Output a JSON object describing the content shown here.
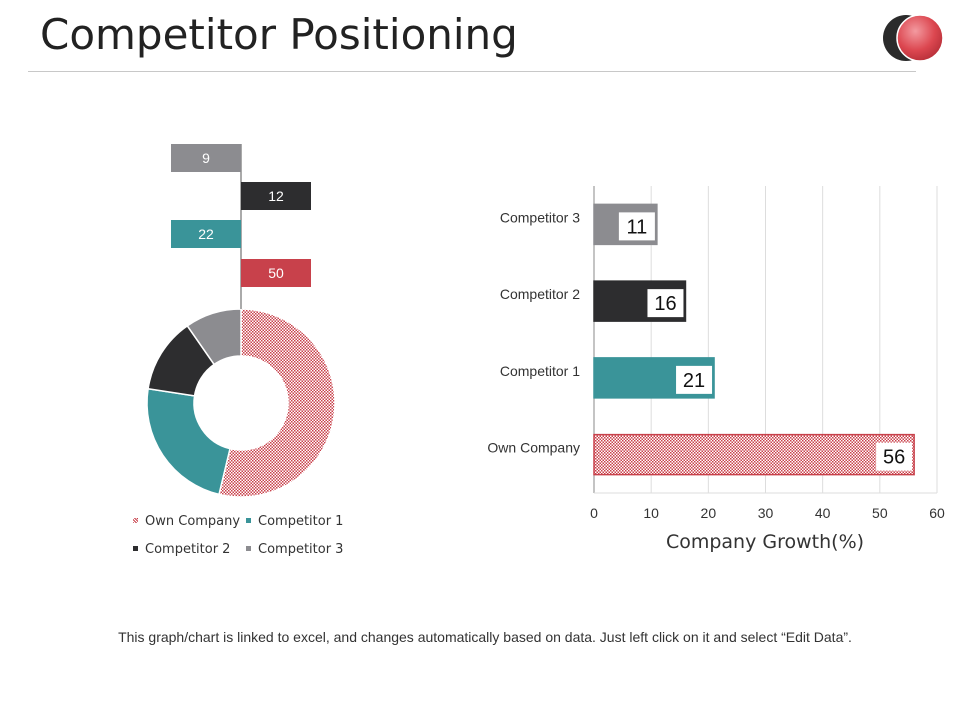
{
  "page": {
    "title": "Competitor Positioning",
    "footer": "This graph/chart is linked to excel, and changes automatically  based on data. Just left click on it and select “Edit Data”."
  },
  "colors": {
    "own": "#c8414b",
    "comp1": "#3a9499",
    "comp2": "#2d2d2f",
    "comp3": "#8c8c90",
    "grid": "#dddddd",
    "logo_dark": "#2b2b2b",
    "logo_red": "#d83a44"
  },
  "chart_data": [
    {
      "type": "pie",
      "variant": "donut",
      "categories": [
        "Own Company",
        "Competitor 1",
        "Competitor 2",
        "Competitor 3"
      ],
      "values": [
        50,
        22,
        12,
        9
      ],
      "data_labels": [
        "50",
        "22",
        "12",
        "9"
      ],
      "legend": {
        "position": "bottom",
        "entries": [
          "Own Company",
          "Competitor 1",
          "Competitor 2",
          "Competitor 3"
        ]
      },
      "title": ""
    },
    {
      "type": "bar",
      "orientation": "horizontal",
      "categories": [
        "Own Company",
        "Competitor 1",
        "Competitor 2",
        "Competitor 3"
      ],
      "values": [
        56,
        21,
        16,
        11
      ],
      "data_labels": [
        "56",
        "21",
        "16",
        "11"
      ],
      "xlabel": "Company Growth(%)",
      "ylabel": "",
      "xlim": [
        0,
        60
      ],
      "xticks": [
        "0",
        "10",
        "20",
        "30",
        "40",
        "50",
        "60"
      ],
      "grid": true,
      "title": ""
    }
  ]
}
